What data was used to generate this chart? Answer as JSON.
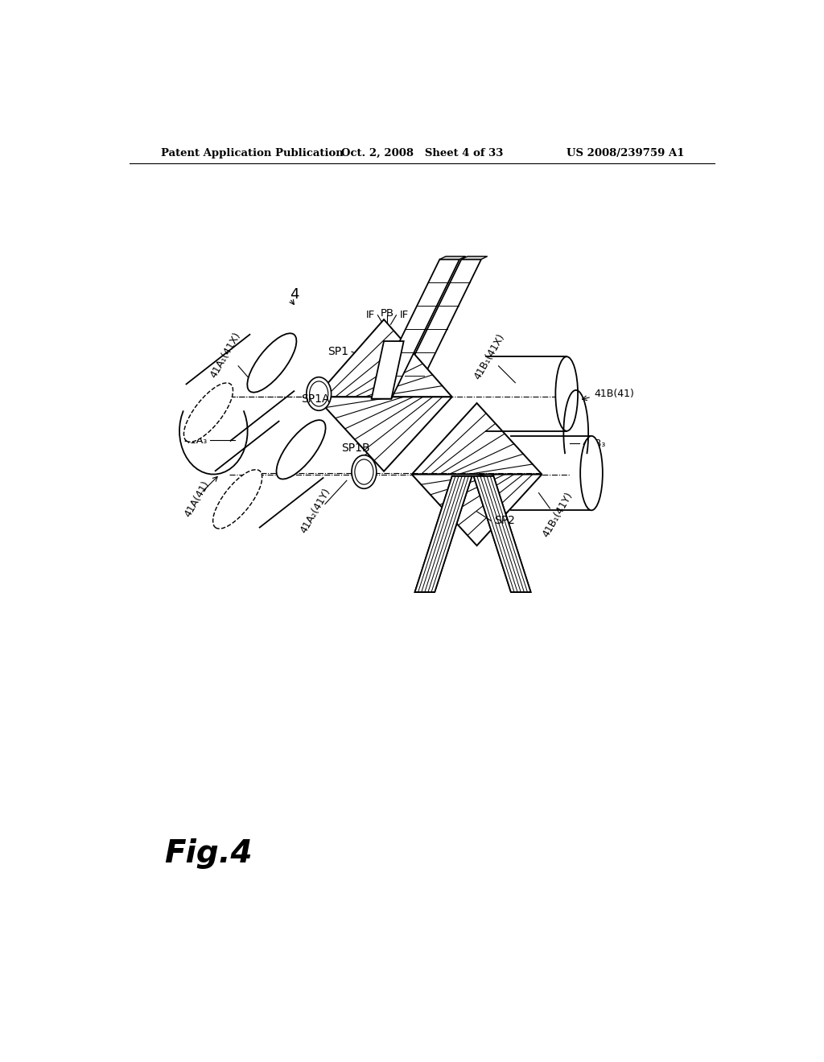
{
  "bg_color": "#ffffff",
  "line_color": "#000000",
  "header_left": "Patent Application Publication",
  "header_mid": "Oct. 2, 2008   Sheet 4 of 33",
  "header_right": "US 2008/239759 A1",
  "fig_label": "Fig.4"
}
